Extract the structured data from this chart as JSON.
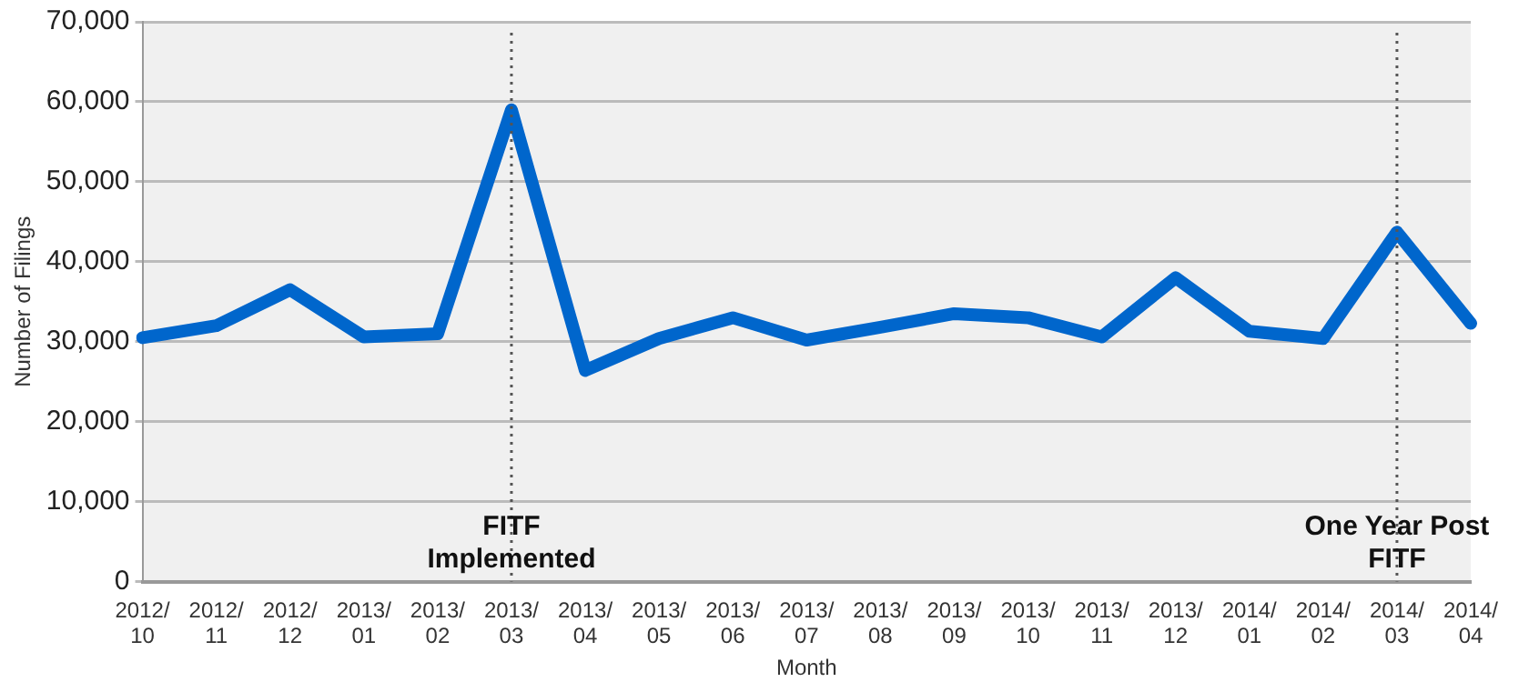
{
  "chart_data": {
    "type": "line",
    "xlabel": "Month",
    "ylabel": "Number of Filings",
    "categories": [
      "2012/10",
      "2012/11",
      "2012/12",
      "2013/01",
      "2013/02",
      "2013/03",
      "2013/04",
      "2013/05",
      "2013/06",
      "2013/07",
      "2013/08",
      "2013/09",
      "2013/10",
      "2013/11",
      "2013/12",
      "2014/01",
      "2014/02",
      "2014/03",
      "2014/04"
    ],
    "series": [
      {
        "color": "#0066cc",
        "values": [
          30500,
          32000,
          36500,
          30600,
          31000,
          59000,
          26400,
          30400,
          33000,
          30200,
          31800,
          33500,
          33000,
          30600,
          38000,
          31300,
          30400,
          43700,
          32300
        ]
      }
    ],
    "ylim": [
      0,
      70000
    ],
    "yticks": [
      0,
      {
        "value": 10000,
        "label": "10,000"
      },
      {
        "value": 20000,
        "label": "20,000"
      },
      {
        "value": 30000,
        "label": "30,000"
      },
      {
        "value": 40000,
        "label": "40,000"
      },
      {
        "value": 50000,
        "label": "50,000"
      },
      {
        "value": 60000,
        "label": "60,000"
      },
      {
        "value": 70000,
        "label": "70,000"
      }
    ],
    "grid": "y",
    "legend": false,
    "marker": "none",
    "line_style": "solid",
    "ref_lines": [
      {
        "axis": "x",
        "value": "2013/03",
        "label": "FITF Implemented",
        "color": "#555555",
        "line_style": "dotted"
      },
      {
        "axis": "x",
        "value": "2014/03",
        "label": "One Year Post FITF",
        "color": "#555555",
        "line_style": "dotted"
      }
    ]
  }
}
